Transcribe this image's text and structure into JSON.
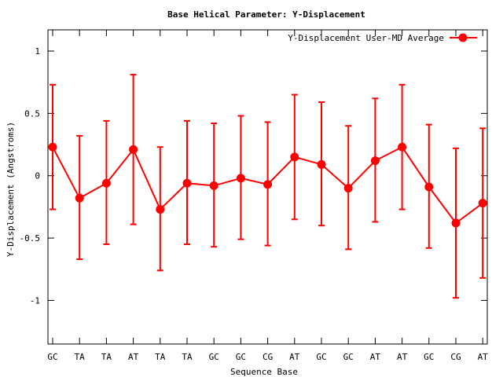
{
  "chart_data": {
    "type": "line",
    "title": "Base  Helical Parameter: Y-Displacement",
    "xlabel": "Sequence Base",
    "ylabel": "Y-Displacement (Angstroms)",
    "ylim": [
      -1.35,
      1.17
    ],
    "y_ticks": [
      1,
      0.5,
      0,
      -0.5,
      -1
    ],
    "y_tick_labels": [
      "1",
      "0.5",
      "0",
      "-0.5",
      "-1"
    ],
    "categories": [
      "GC",
      "TA",
      "TA",
      "AT",
      "TA",
      "TA",
      "GC",
      "GC",
      "CG",
      "AT",
      "GC",
      "GC",
      "AT",
      "AT",
      "GC",
      "CG",
      "AT"
    ],
    "grid": false,
    "legend_position": "top-right",
    "series": [
      {
        "name": "Y-Displacement User-MD Average",
        "color": "#ff0000",
        "values": [
          0.23,
          -0.18,
          -0.06,
          0.21,
          -0.27,
          -0.06,
          -0.08,
          -0.02,
          -0.07,
          0.15,
          0.09,
          -0.1,
          0.12,
          0.23,
          -0.09,
          -0.38,
          -0.22
        ],
        "error_low": [
          -0.27,
          -0.67,
          -0.55,
          -0.39,
          -0.76,
          -0.55,
          -0.57,
          -0.51,
          -0.56,
          -0.35,
          -0.4,
          -0.59,
          -0.37,
          -0.27,
          -0.58,
          -0.98,
          -0.82
        ],
        "error_high": [
          0.73,
          0.32,
          0.44,
          0.81,
          0.23,
          0.44,
          0.42,
          0.48,
          0.43,
          0.65,
          0.59,
          0.4,
          0.62,
          0.73,
          0.41,
          0.22,
          0.38
        ]
      }
    ]
  }
}
